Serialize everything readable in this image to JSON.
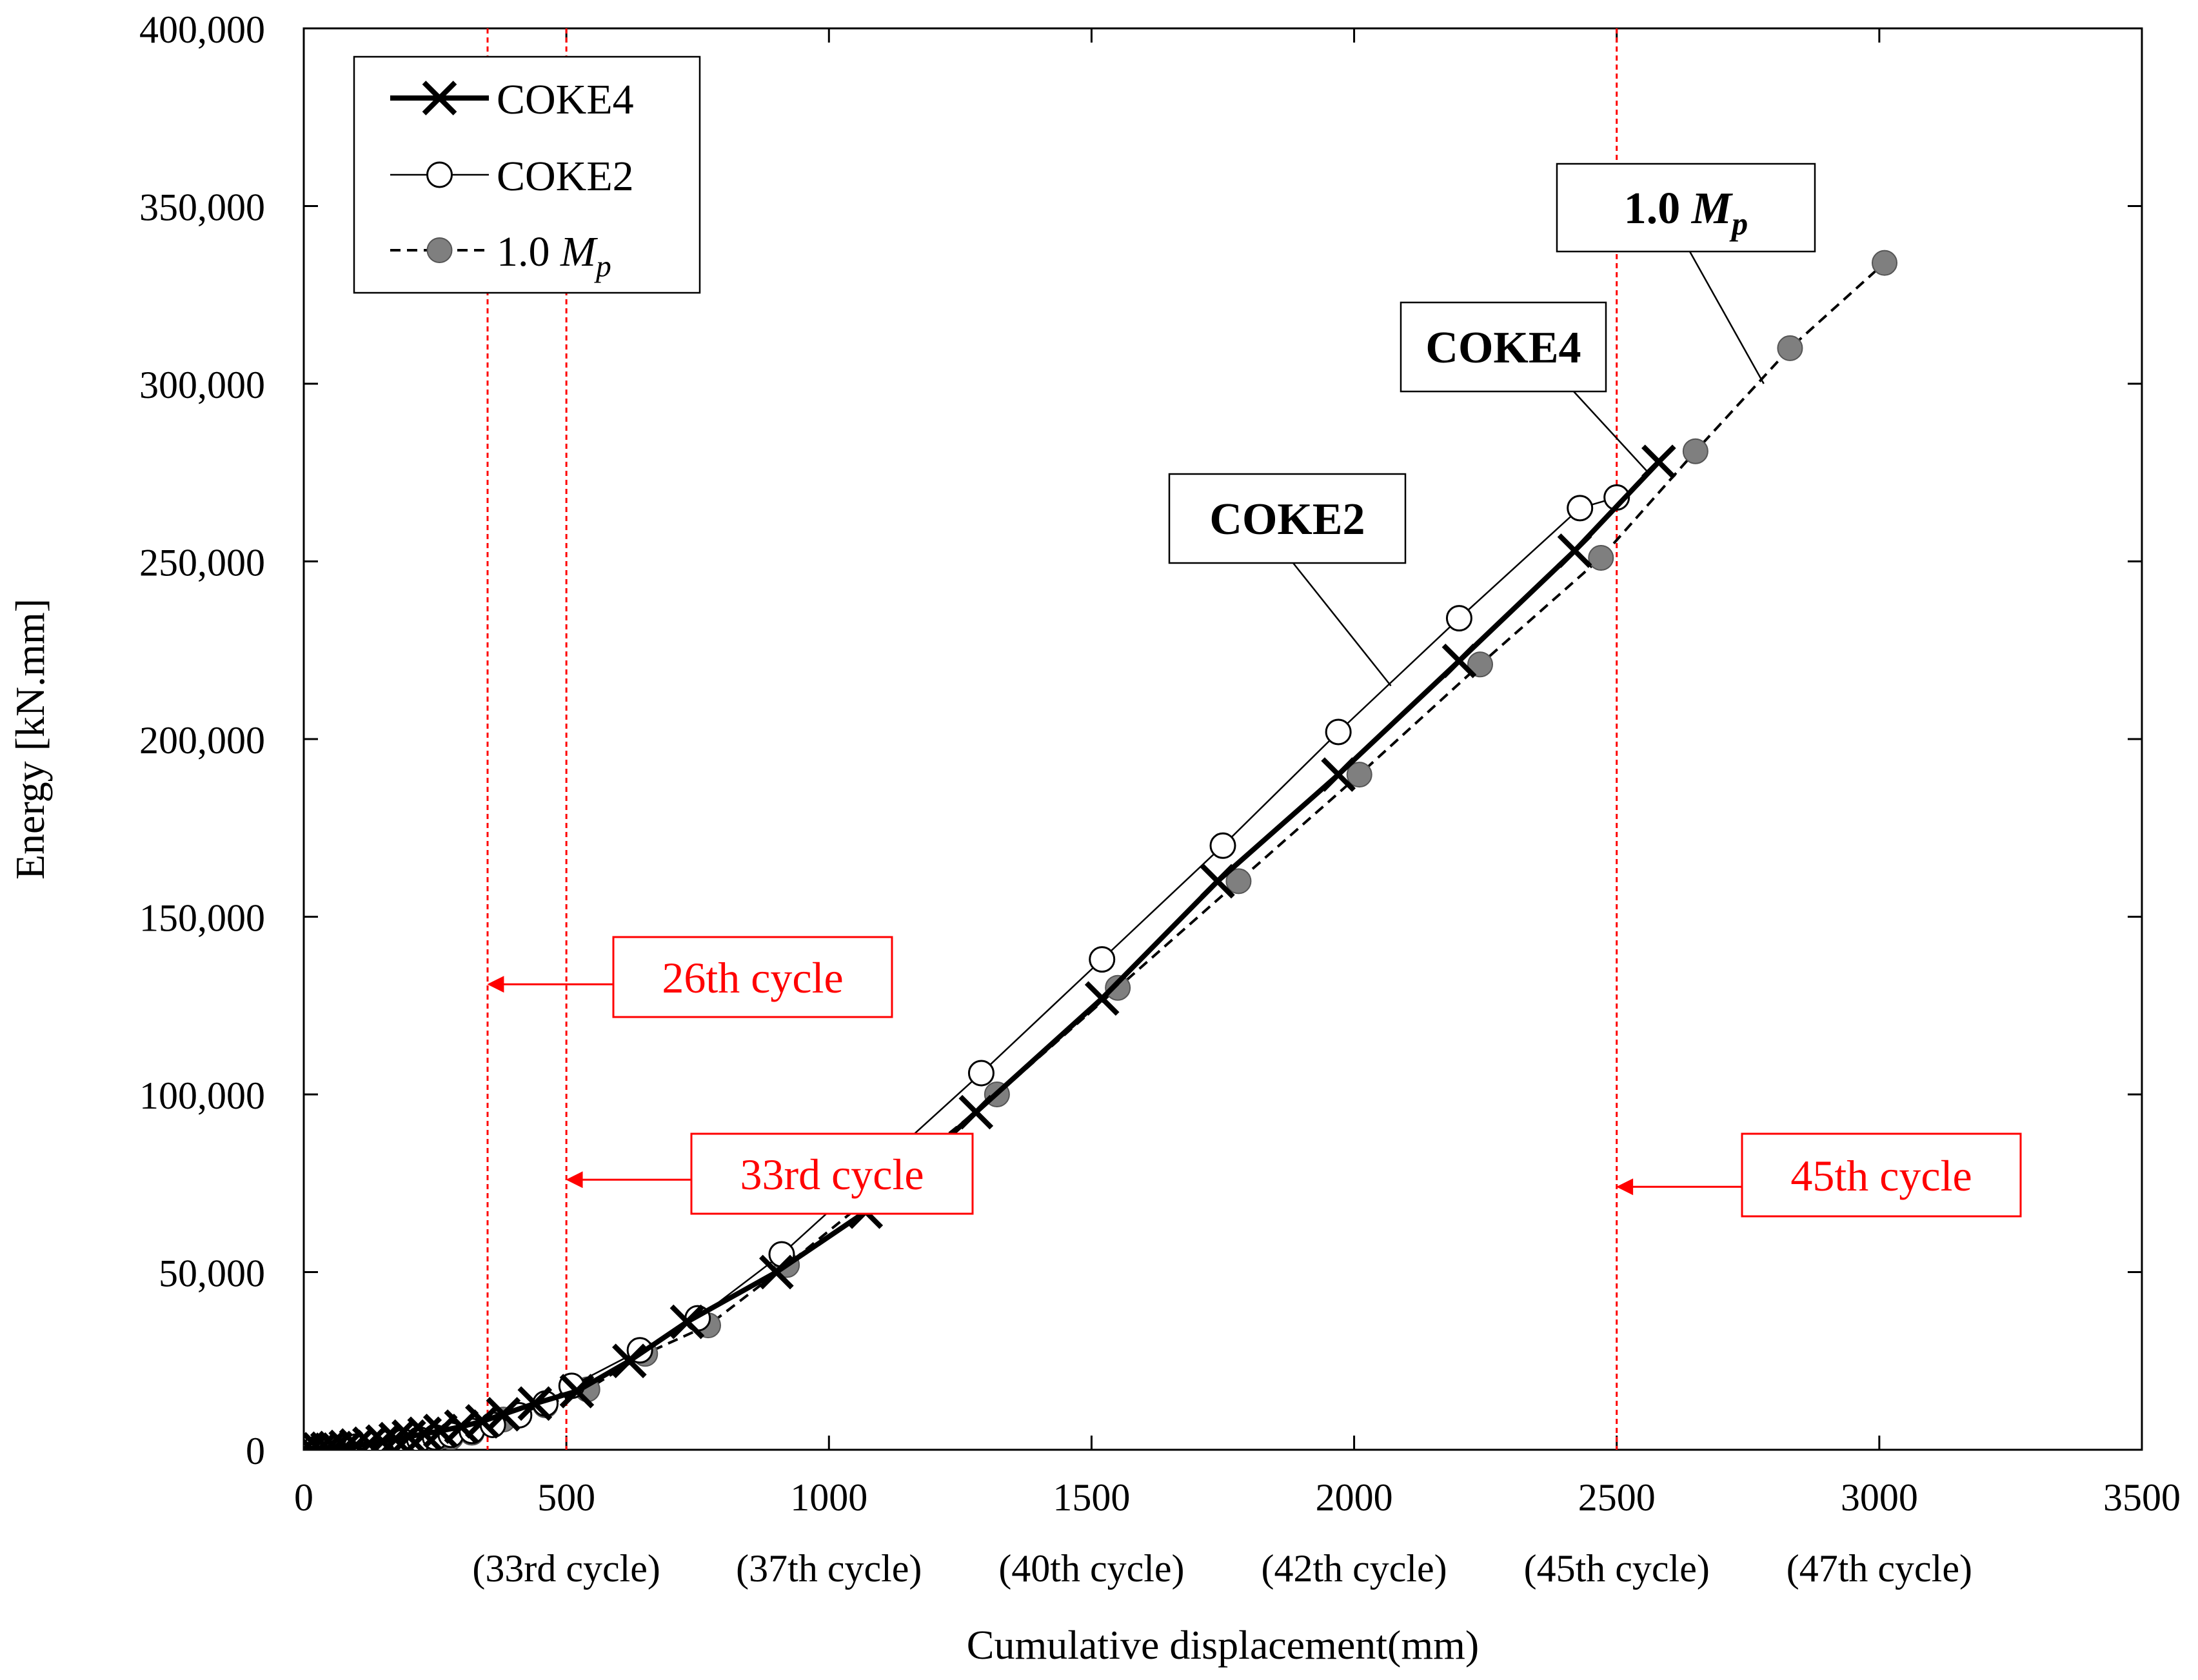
{
  "chart_data": {
    "type": "line",
    "title": "",
    "xlabel": "Cumulative displacement(mm)",
    "ylabel": "Energy [kN.mm]",
    "xlim": [
      0,
      3500
    ],
    "ylim": [
      0,
      400000
    ],
    "x_ticks": [
      0,
      500,
      1000,
      1500,
      2000,
      2500,
      3000,
      3500
    ],
    "x_tick_labels": [
      "0",
      "500",
      "1000",
      "1500",
      "2000",
      "2500",
      "3000",
      "3500"
    ],
    "x_tick_sublabels": [
      "",
      "(33rd cycle)",
      "(37th cycle)",
      "(40th cycle)",
      "(42th cycle)",
      "(45th cycle)",
      "(47th cycle)",
      ""
    ],
    "y_ticks": [
      0,
      50000,
      100000,
      150000,
      200000,
      250000,
      300000,
      350000,
      400000
    ],
    "y_tick_labels": [
      "0",
      "50,000",
      "100,000",
      "150,000",
      "200,000",
      "250,000",
      "300,000",
      "350,000",
      "400,000"
    ],
    "grid": false,
    "legend_position": "top-left",
    "legend": [
      {
        "name": "COKE4",
        "style": "thick-solid-x"
      },
      {
        "name": "COKE2",
        "style": "thin-solid-open-circle"
      },
      {
        "name": "1.0 ",
        "name_math": "M",
        "name_sub": "p",
        "style": "dashed-filled-circle"
      }
    ],
    "series": [
      {
        "name": "COKE4",
        "x": [
          0,
          15,
          30,
          45,
          60,
          80,
          100,
          125,
          150,
          175,
          200,
          230,
          260,
          300,
          340,
          380,
          440,
          520,
          620,
          730,
          900,
          1070,
          1280,
          1520,
          1740,
          1970,
          2200,
          2420,
          2580
        ],
        "y": [
          0,
          50,
          150,
          300,
          500,
          800,
          1200,
          1700,
          2300,
          3000,
          3700,
          4500,
          5300,
          6500,
          8000,
          10000,
          13000,
          16500,
          25000,
          36000,
          50000,
          67000,
          95000,
          127000,
          160000,
          190000,
          222000,
          253000,
          278000
        ]
      },
      {
        "name": "COKE2",
        "x": [
          0,
          20,
          40,
          60,
          80,
          100,
          130,
          160,
          190,
          220,
          250,
          280,
          320,
          360,
          410,
          460,
          510,
          640,
          750,
          910,
          1290,
          1520,
          1750,
          1970,
          2200,
          2430,
          2500
        ],
        "y": [
          0,
          100,
          200,
          400,
          600,
          900,
          1300,
          1800,
          2300,
          2900,
          3500,
          4200,
          5300,
          7000,
          9700,
          13000,
          18000,
          28000,
          37000,
          55000,
          106000,
          138000,
          170000,
          202000,
          234000,
          265000,
          268000
        ]
      },
      {
        "name": "1.0 Mp",
        "x": [
          0,
          20,
          40,
          60,
          80,
          100,
          130,
          160,
          190,
          220,
          250,
          280,
          320,
          380,
          460,
          540,
          650,
          770,
          920,
          1320,
          1550,
          1780,
          2010,
          2240,
          2470,
          2650,
          2830,
          3010
        ],
        "y": [
          0,
          100,
          200,
          300,
          500,
          800,
          1100,
          1500,
          2000,
          2500,
          3000,
          3500,
          4800,
          8500,
          12500,
          17000,
          27000,
          35000,
          52000,
          100000,
          130000,
          160000,
          190000,
          221000,
          251000,
          281000,
          310000,
          334000
        ]
      }
    ],
    "annotations": [
      {
        "id": "coke4",
        "text": "COKE4",
        "bold": true,
        "anchor": [
          2560,
          275000
        ]
      },
      {
        "id": "coke2",
        "text": "COKE2",
        "bold": true,
        "anchor": [
          2070,
          215000
        ]
      },
      {
        "id": "mp",
        "text": "1.0 ",
        "text_math": "M",
        "text_sub": "p",
        "bold": true,
        "anchor": [
          2780,
          300000
        ]
      }
    ],
    "reference_lines": [
      {
        "x": 350,
        "label": "26th cycle",
        "arrow_y": 131000
      },
      {
        "x": 500,
        "label": "33rd cycle",
        "arrow_y": 76000
      },
      {
        "x": 2500,
        "label": "45th cycle",
        "arrow_y": 74000
      }
    ],
    "colors": {
      "axis": "#000000",
      "reference": "#ff0000",
      "marker_fill": "#7f7f7f"
    }
  }
}
